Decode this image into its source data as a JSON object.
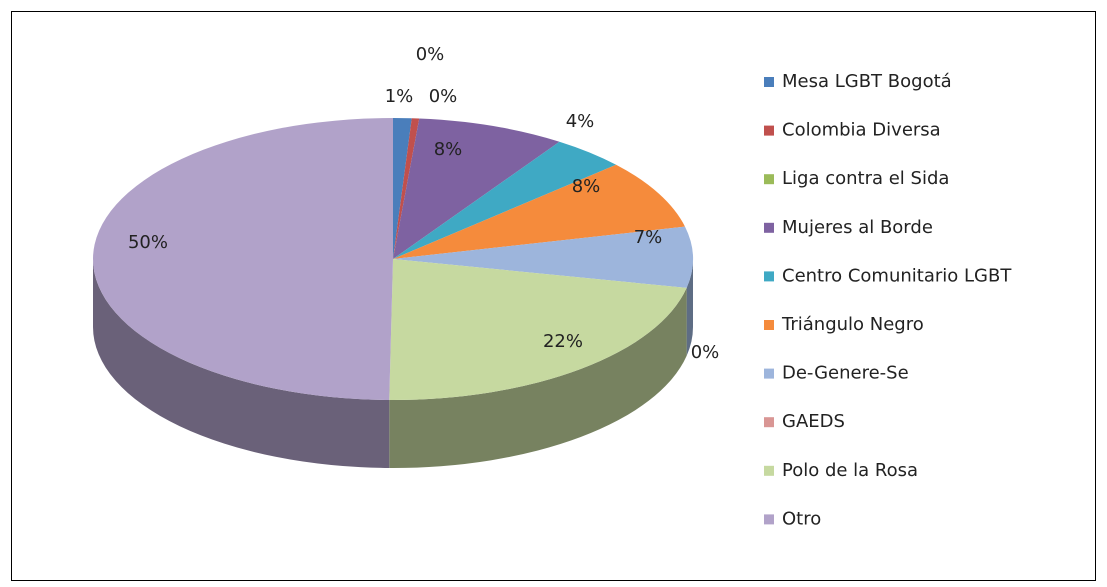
{
  "chart_data": {
    "type": "pie3d",
    "categories": [
      "Mesa LGBT Bogotá",
      "Colombia Diversa",
      "Liga contra el Sida",
      "Mujeres al Borde",
      "Centro Comunitario LGBT",
      "Triángulo Negro",
      "De-Genere-Se",
      "GAEDS",
      "Polo de la Rosa",
      "Otro"
    ],
    "values": [
      1,
      0.4,
      0,
      8,
      4,
      8,
      7,
      0,
      22,
      50
    ],
    "value_labels": [
      "1%",
      "0%",
      "0%",
      "8%",
      "4%",
      "8%",
      "7%",
      "0%",
      "22%",
      "50%"
    ],
    "colors": [
      "#4a7ebb",
      "#c0504d",
      "#9bbb59",
      "#7e62a1",
      "#3fa9c4",
      "#f58b3c",
      "#9db5dc",
      "#d99694",
      "#c6d9a0",
      "#b1a2c9"
    ],
    "legend": "right"
  }
}
